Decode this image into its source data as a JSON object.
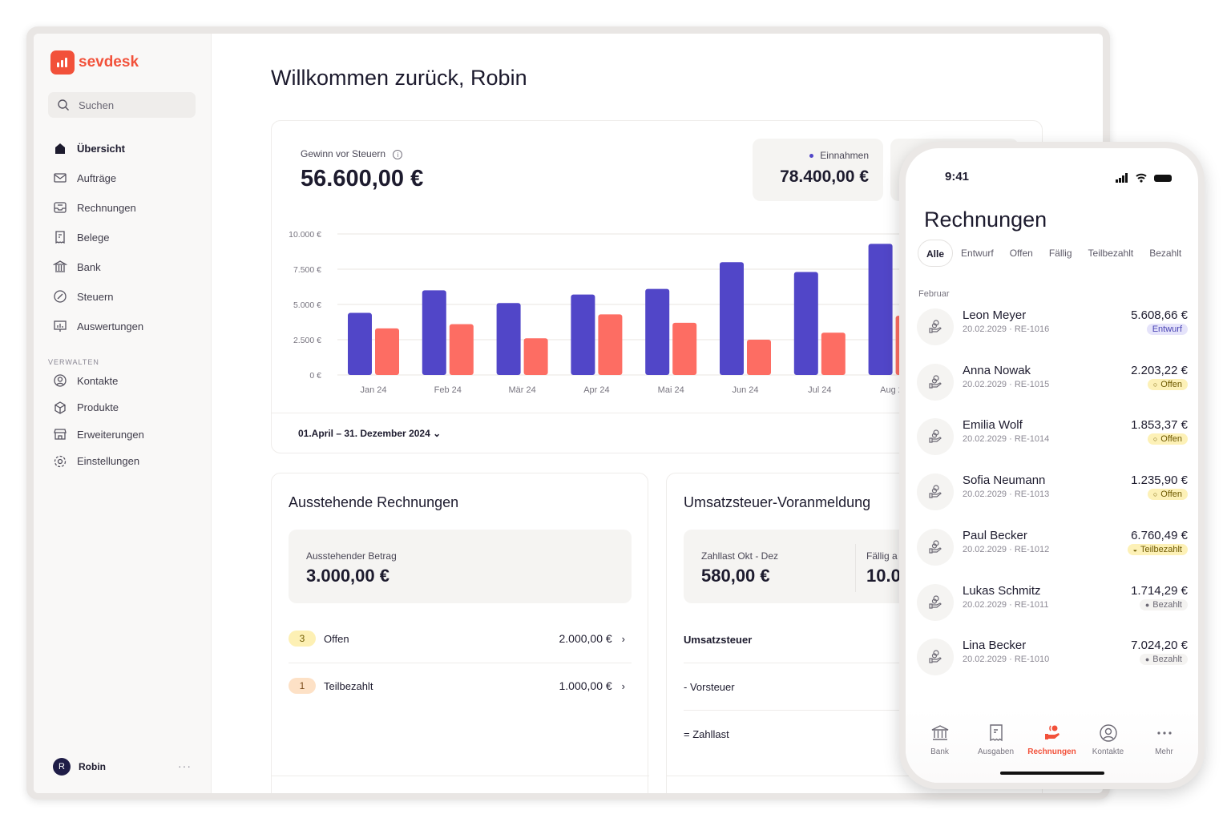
{
  "brand": {
    "name": "sevdesk",
    "accent": "#f2513a"
  },
  "sidebar": {
    "search_placeholder": "Suchen",
    "items": [
      {
        "label": "Übersicht",
        "icon": "home-icon",
        "active": true
      },
      {
        "label": "Aufträge",
        "icon": "mail-icon"
      },
      {
        "label": "Rechnungen",
        "icon": "inbox-icon"
      },
      {
        "label": "Belege",
        "icon": "receipt-icon"
      },
      {
        "label": "Bank",
        "icon": "bank-icon"
      },
      {
        "label": "Steuern",
        "icon": "percent-icon"
      },
      {
        "label": "Auswertungen",
        "icon": "chart-icon"
      }
    ],
    "section_label": "VERWALTEN",
    "manage_items": [
      {
        "label": "Kontakte",
        "icon": "user-circle-icon"
      },
      {
        "label": "Produkte",
        "icon": "box-icon"
      },
      {
        "label": "Erweiterungen",
        "icon": "store-icon"
      },
      {
        "label": "Einstellungen",
        "icon": "gear-icon"
      }
    ],
    "user": {
      "initial": "R",
      "name": "Robin",
      "more": "···"
    }
  },
  "main": {
    "greeting": "Willkommen zurück, Robin",
    "profit": {
      "label": "Gewinn vor Steuern",
      "value": "56.600,00 €"
    },
    "income": {
      "label": "Einnahmen",
      "value": "78.400,00 €"
    },
    "date_range": "01.April – 31. Dezember 2024",
    "outstanding": {
      "title": "Ausstehende Rechnungen",
      "amount_label": "Ausstehender Betrag",
      "amount": "3.000,00 €",
      "rows": [
        {
          "count": "3",
          "label": "Offen",
          "value": "2.000,00 €"
        },
        {
          "count": "1",
          "label": "Teilbezahlt",
          "value": "1.000,00 €"
        }
      ]
    },
    "vat": {
      "title": "Umsatzsteuer-Voranmeldung",
      "liability_label": "Zahllast Okt - Dez",
      "liability": "580,00 €",
      "due_label": "Fällig a",
      "due_value": "10.0",
      "rows": [
        "Umsatzsteuer",
        "- Vorsteuer",
        "= Zahllast"
      ]
    }
  },
  "chart_data": {
    "type": "bar",
    "categories": [
      "Jan 24",
      "Feb 24",
      "Mär 24",
      "Apr 24",
      "Mai 24",
      "Jun 24",
      "Jul 24",
      "Aug 24"
    ],
    "series": [
      {
        "name": "Einnahmen",
        "color": "#5146c8",
        "values": [
          4400,
          6000,
          5100,
          5700,
          6100,
          8000,
          7300,
          9300
        ]
      },
      {
        "name": "Ausgaben",
        "color": "#fd6d63",
        "values": [
          3300,
          3600,
          2600,
          4300,
          3700,
          2500,
          3000,
          4200
        ]
      }
    ],
    "yticks": [
      "10.000 €",
      "7.500 €",
      "5.000 €",
      "2.500 €",
      "0 €"
    ],
    "ylim": [
      0,
      10000
    ],
    "grid": true
  },
  "phone": {
    "time": "9:41",
    "title": "Rechnungen",
    "tabs": [
      "Alle",
      "Entwurf",
      "Offen",
      "Fällig",
      "Teilbezahlt",
      "Bezahlt"
    ],
    "month": "Februar",
    "invoices": [
      {
        "name": "Leon Meyer",
        "date": "20.02.2029",
        "id": "RE-1016",
        "amount": "5.608,66 €",
        "status": "Entwurf",
        "cls": "b-entwurf"
      },
      {
        "name": "Anna Nowak",
        "date": "20.02.2029",
        "id": "RE-1015",
        "amount": "2.203,22 €",
        "status": "Offen",
        "cls": "b-offen"
      },
      {
        "name": "Emilia Wolf",
        "date": "20.02.2029",
        "id": "RE-1014",
        "amount": "1.853,37 €",
        "status": "Offen",
        "cls": "b-offen"
      },
      {
        "name": "Sofia Neumann",
        "date": "20.02.2029",
        "id": "RE-1013",
        "amount": "1.235,90 €",
        "status": "Offen",
        "cls": "b-offen"
      },
      {
        "name": "Paul Becker",
        "date": "20.02.2029",
        "id": "RE-1012",
        "amount": "6.760,49 €",
        "status": "Teilbezahlt",
        "cls": "b-teil"
      },
      {
        "name": "Lukas Schmitz",
        "date": "20.02.2029",
        "id": "RE-1011",
        "amount": "1.714,29 €",
        "status": "Bezahlt",
        "cls": "b-bez"
      },
      {
        "name": "Lina Becker",
        "date": "20.02.2029",
        "id": "RE-1010",
        "amount": "7.024,20 €",
        "status": "Bezahlt",
        "cls": "b-bez"
      }
    ],
    "bottom_nav": [
      "Bank",
      "Ausgaben",
      "Rechnungen",
      "Kontakte",
      "Mehr"
    ]
  }
}
